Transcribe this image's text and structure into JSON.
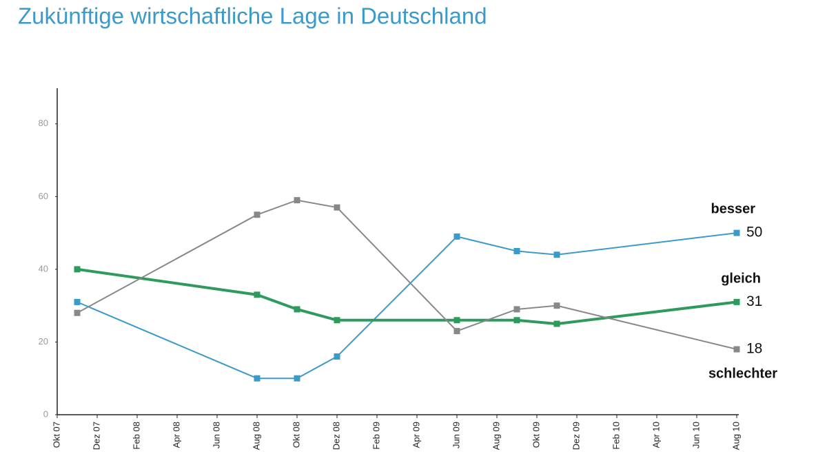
{
  "chart_data": {
    "type": "line",
    "title": "Zukünftige wirtschaftliche Lage in Deutschland",
    "x": [
      "Nov 07",
      "Aug 08",
      "Okt 08",
      "Dez 08",
      "Jun 09",
      "Sep 09",
      "Nov 09",
      "Aug 10"
    ],
    "xlim": [
      "Okt 07",
      "Aug 10"
    ],
    "xticks": [
      "Okt 07",
      "Dez 07",
      "Feb 08",
      "Apr 08",
      "Jun 08",
      "Aug 08",
      "Okt 08",
      "Dez 08",
      "Feb 09",
      "Apr 09",
      "Jun 09",
      "Aug 09",
      "Okt 09",
      "Dez 09",
      "Feb 10",
      "Apr 10",
      "Jun 10",
      "Aug 10"
    ],
    "ylim": [
      0,
      90
    ],
    "yticks": [
      0,
      20,
      40,
      60,
      80
    ],
    "grid": false,
    "series": [
      {
        "name": "besser",
        "color": "#3a9ac9",
        "values": [
          31,
          10,
          10,
          16,
          49,
          45,
          44,
          50
        ]
      },
      {
        "name": "gleich",
        "color": "#2e9a5c",
        "values": [
          40,
          33,
          29,
          26,
          26,
          26,
          25,
          31
        ]
      },
      {
        "name": "schlechter",
        "color": "#888888",
        "values": [
          28,
          55,
          59,
          57,
          23,
          29,
          30,
          18
        ]
      }
    ]
  }
}
